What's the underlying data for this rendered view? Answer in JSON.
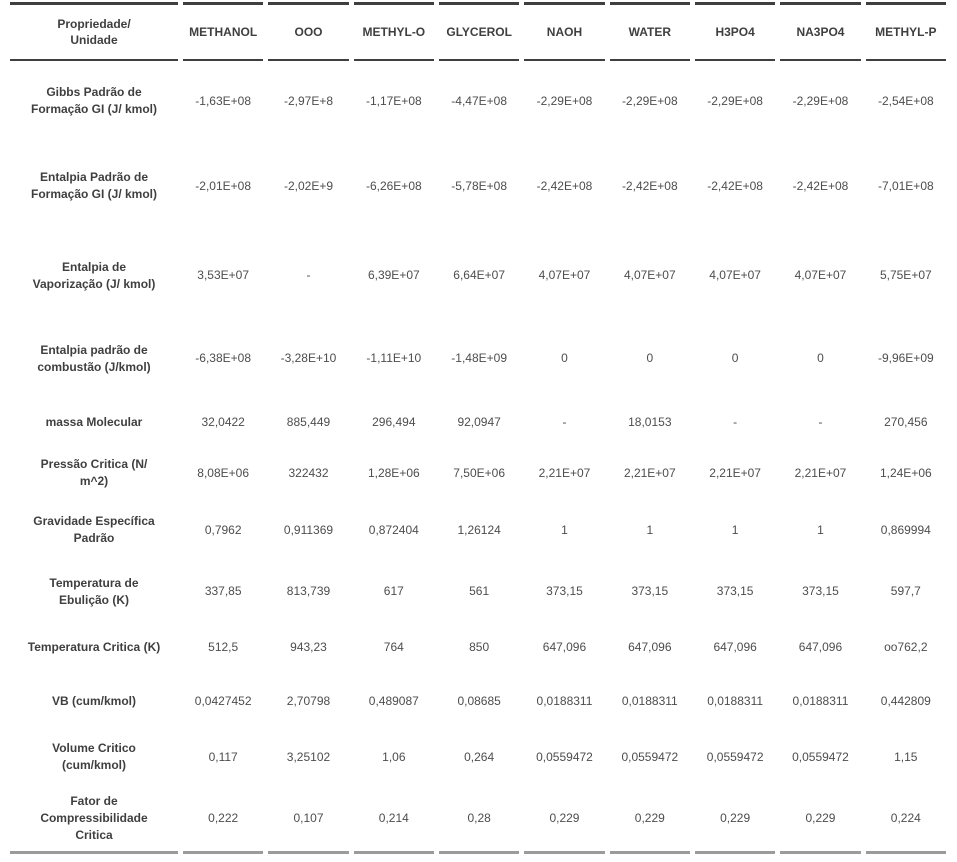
{
  "colors": {
    "header_rule": "#3f3f3f",
    "bottom_rule": "#9b9b9b",
    "label_text": "#3f3f3f",
    "value_text": "#4d4d4d",
    "background": "#ffffff"
  },
  "table": {
    "header": [
      "Propriedade/\nUnidade",
      "METHANOL",
      "OOO",
      "METHYL-O",
      "GLYCEROL",
      "NAOH",
      "WATER",
      "H3PO4",
      "NA3PO4",
      "METHYL-P"
    ],
    "rows": [
      {
        "label": "Gibbs Padrão de Formação GI (J/ kmol)",
        "values": [
          "-1,63E+08",
          "-2,97E+8",
          "-1,17E+08",
          "-4,47E+08",
          "-2,29E+08",
          "-2,29E+08",
          "-2,29E+08",
          "-2,29E+08",
          "-2,54E+08"
        ]
      },
      {
        "label": "Entalpia Padrão de Formação GI (J/ kmol)",
        "values": [
          "-2,01E+08",
          "-2,02E+9",
          "-6,26E+08",
          "-5,78E+08",
          "-2,42E+08",
          "-2,42E+08",
          "-2,42E+08",
          "-2,42E+08",
          "-7,01E+08"
        ]
      },
      {
        "label": "Entalpia de Vaporização (J/ kmol)",
        "values": [
          "3,53E+07",
          "-",
          "6,39E+07",
          "6,64E+07",
          "4,07E+07",
          "4,07E+07",
          "4,07E+07",
          "4,07E+07",
          "5,75E+07"
        ]
      },
      {
        "label": "Entalpia padrão de combustão (J/kmol)",
        "values": [
          "-6,38E+08",
          "-3,28E+10",
          "-1,11E+10",
          "-1,48E+09",
          "0",
          "0",
          "0",
          "0",
          "-9,96E+09"
        ]
      },
      {
        "label": "massa Molecular",
        "values": [
          "32,0422",
          "885,449",
          "296,494",
          "92,0947",
          "-",
          "18,0153",
          "-",
          "-",
          "270,456"
        ]
      },
      {
        "label": "Pressão Critica (N/ m^2)",
        "values": [
          "8,08E+06",
          "322432",
          "1,28E+06",
          "7,50E+06",
          "2,21E+07",
          "2,21E+07",
          "2,21E+07",
          "2,21E+07",
          "1,24E+06"
        ]
      },
      {
        "label": "Gravidade Específica Padrão",
        "values": [
          "0,7962",
          "0,911369",
          "0,872404",
          "1,26124",
          "1",
          "1",
          "1",
          "1",
          "0,869994"
        ]
      },
      {
        "label": "Temperatura de Ebulição (K)",
        "values": [
          "337,85",
          "813,739",
          "617",
          "561",
          "373,15",
          "373,15",
          "373,15",
          "373,15",
          "597,7"
        ]
      },
      {
        "label": "Temperatura Critica (K)",
        "values": [
          "512,5",
          "943,23",
          "764",
          "850",
          "647,096",
          "647,096",
          "647,096",
          "647,096",
          "oo762,2"
        ]
      },
      {
        "label": "VB (cum/kmol)",
        "values": [
          "0,0427452",
          "2,70798",
          "0,489087",
          "0,08685",
          "0,0188311",
          "0,0188311",
          "0,0188311",
          "0,0188311",
          "0,442809"
        ]
      },
      {
        "label": "Volume Critico (cum/kmol)",
        "values": [
          "0,117",
          "3,25102",
          "1,06",
          "0,264",
          "0,0559472",
          "0,0559472",
          "0,0559472",
          "0,0559472",
          "1,15"
        ]
      },
      {
        "label": "Fator de Compressibilidade Critica",
        "values": [
          "0,222",
          "0,107",
          "0,214",
          "0,28",
          "0,229",
          "0,229",
          "0,229",
          "0,229",
          "0,224"
        ]
      }
    ]
  }
}
